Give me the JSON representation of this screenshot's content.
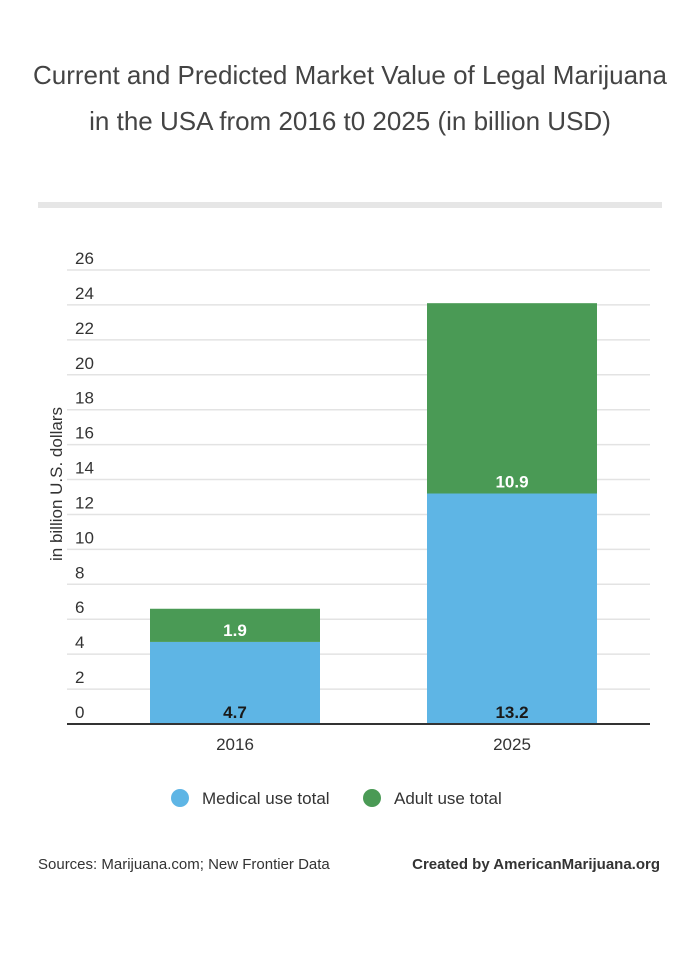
{
  "chart_data": {
    "type": "bar",
    "stacked": true,
    "title": "Current and Predicted Market Value of Legal Marijuana in the USA from 2016 t0 2025 (in billion USD)",
    "ylabel": "in billion U.S. dollars",
    "xlabel": "",
    "categories": [
      "2016",
      "2025"
    ],
    "series": [
      {
        "name": "Medical use total",
        "values": [
          4.7,
          13.2
        ],
        "color": "#5eb5e5",
        "label_color": "#1a1a1a"
      },
      {
        "name": "Adult use total",
        "values": [
          1.9,
          10.9
        ],
        "color": "#4a9a55",
        "label_color": "#ffffff"
      }
    ],
    "ylim": [
      0,
      26
    ],
    "yticks": [
      0,
      2,
      4,
      6,
      8,
      10,
      12,
      14,
      16,
      18,
      20,
      22,
      24,
      26
    ],
    "grid": true,
    "legend": "bottom-center"
  },
  "footer": {
    "sources": "Sources: Marijuana.com; New Frontier Data",
    "credit": "Created by AmericanMarijuana.org"
  }
}
